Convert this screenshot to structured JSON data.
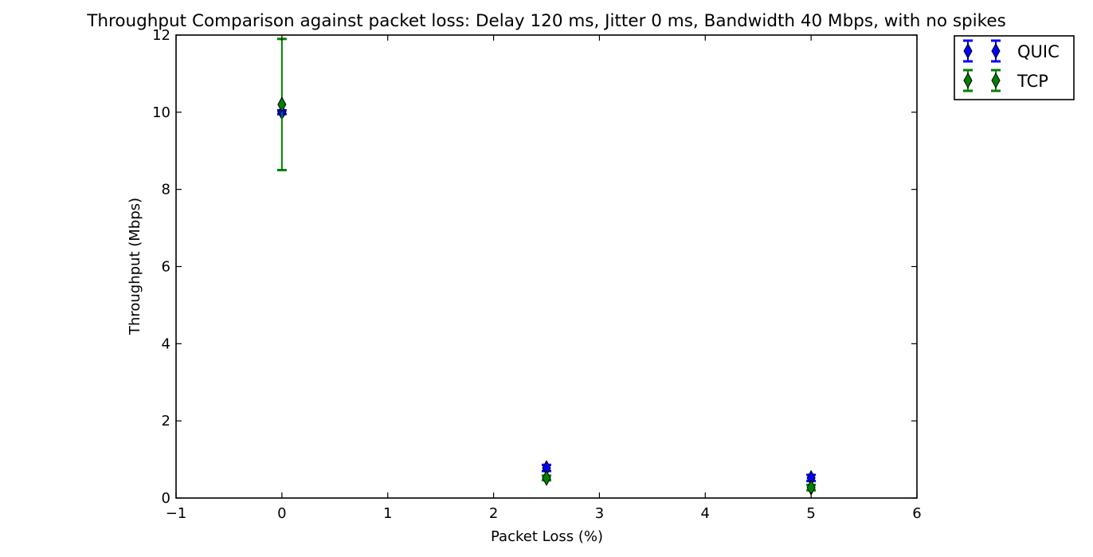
{
  "chart_data": {
    "type": "scatter",
    "title": "Throughput Comparison against packet loss: Delay 120 ms, Jitter 0 ms, Bandwidth 40 Mbps, with no spikes",
    "xlabel": "Packet Loss (%)",
    "ylabel": "Throughput (Mbps)",
    "xlim": [
      -1,
      6
    ],
    "ylim": [
      0,
      12
    ],
    "xticks": [
      -1,
      0,
      1,
      2,
      3,
      4,
      5,
      6
    ],
    "yticks": [
      0,
      2,
      4,
      6,
      8,
      10,
      12
    ],
    "xtick_labels": [
      "−1",
      "0",
      "1",
      "2",
      "3",
      "4",
      "5",
      "6"
    ],
    "ytick_labels": [
      "0",
      "2",
      "4",
      "6",
      "8",
      "10",
      "12"
    ],
    "grid": false,
    "legend_position": "outside-top-right",
    "marker": "diamond",
    "series": [
      {
        "name": "QUIC",
        "color": "#0000ff",
        "x": [
          0,
          2.5,
          5
        ],
        "y": [
          10.0,
          0.78,
          0.52
        ],
        "err": [
          0.05,
          0.08,
          0.08
        ]
      },
      {
        "name": "TCP",
        "color": "#008000",
        "x": [
          0,
          2.5,
          5
        ],
        "y": [
          10.2,
          0.52,
          0.27
        ],
        "err": [
          1.7,
          0.06,
          0.07
        ]
      }
    ]
  }
}
